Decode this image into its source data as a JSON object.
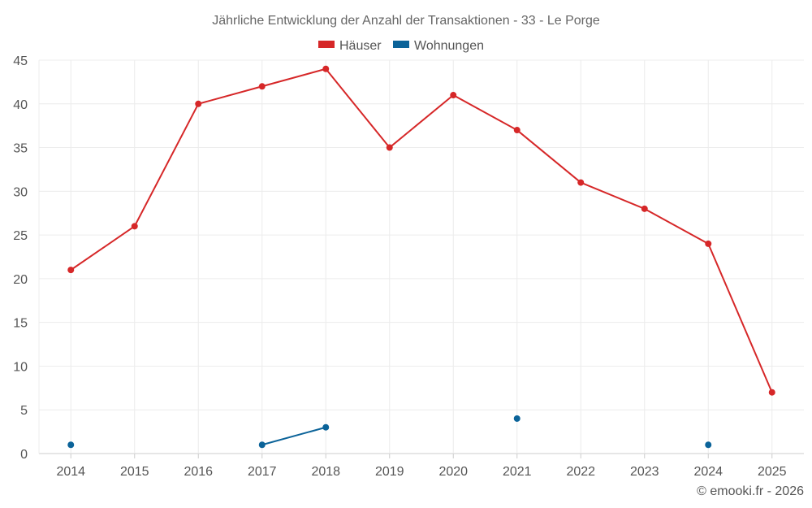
{
  "chart_data": {
    "type": "line",
    "title": "Jährliche Entwicklung der Anzahl der Transaktionen - 33 - Le Porge",
    "categories": [
      "2014",
      "2015",
      "2016",
      "2017",
      "2018",
      "2019",
      "2020",
      "2021",
      "2022",
      "2023",
      "2024",
      "2025"
    ],
    "series": [
      {
        "name": "Häuser",
        "color": "#d62728",
        "values": [
          21,
          26,
          40,
          42,
          44,
          35,
          41,
          37,
          31,
          28,
          24,
          7
        ]
      },
      {
        "name": "Wohnungen",
        "color": "#0b6399",
        "values": [
          1,
          null,
          null,
          1,
          3,
          null,
          null,
          4,
          null,
          null,
          1,
          null
        ]
      }
    ],
    "yticks": [
      0,
      5,
      10,
      15,
      20,
      25,
      30,
      35,
      40,
      45
    ],
    "ylim": [
      0,
      45
    ],
    "xlabel": "",
    "ylabel": "",
    "grid": true,
    "legend": "top-center"
  },
  "footer": "© emooki.fr - 2026"
}
